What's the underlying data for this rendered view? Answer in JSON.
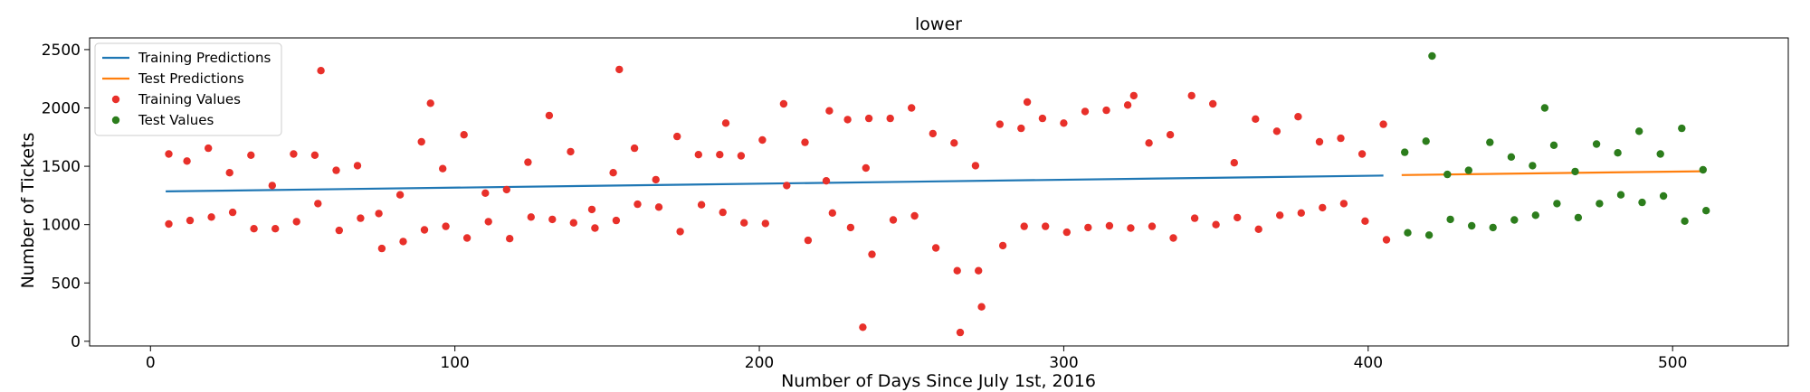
{
  "chart_data": {
    "type": "scatter",
    "title": "lower",
    "xlabel": "Number of Days Since July 1st, 2016",
    "ylabel": "Number of Tickets",
    "xlim": [
      -20,
      538
    ],
    "ylim": [
      -40,
      2600
    ],
    "xticks": [
      0,
      100,
      200,
      300,
      400,
      500
    ],
    "yticks": [
      0,
      500,
      1000,
      1500,
      2000,
      2500
    ],
    "grid": false,
    "legend_position": "upper-left",
    "series": [
      {
        "name": "Training Predictions",
        "type": "line",
        "color": "#1f77b4",
        "points": [
          [
            5,
            1285
          ],
          [
            405,
            1420
          ]
        ]
      },
      {
        "name": "Test Predictions",
        "type": "line",
        "color": "#ff7f0e",
        "points": [
          [
            411,
            1425
          ],
          [
            510,
            1457
          ]
        ]
      },
      {
        "name": "Training Values",
        "type": "scatter",
        "color": "#e8302a",
        "points": [
          [
            6,
            1605
          ],
          [
            6,
            1005
          ],
          [
            12,
            1545
          ],
          [
            13,
            1035
          ],
          [
            19,
            1655
          ],
          [
            20,
            1065
          ],
          [
            26,
            1445
          ],
          [
            27,
            1105
          ],
          [
            33,
            1595
          ],
          [
            34,
            965
          ],
          [
            40,
            1335
          ],
          [
            41,
            965
          ],
          [
            47,
            1605
          ],
          [
            48,
            1025
          ],
          [
            54,
            1595
          ],
          [
            55,
            1180
          ],
          [
            56,
            2320
          ],
          [
            61,
            1465
          ],
          [
            62,
            950
          ],
          [
            68,
            1505
          ],
          [
            69,
            1055
          ],
          [
            75,
            1095
          ],
          [
            76,
            795
          ],
          [
            82,
            1255
          ],
          [
            83,
            855
          ],
          [
            89,
            1710
          ],
          [
            90,
            955
          ],
          [
            92,
            2040
          ],
          [
            96,
            1480
          ],
          [
            97,
            985
          ],
          [
            103,
            1770
          ],
          [
            104,
            885
          ],
          [
            110,
            1270
          ],
          [
            111,
            1025
          ],
          [
            117,
            1300
          ],
          [
            118,
            880
          ],
          [
            124,
            1535
          ],
          [
            125,
            1065
          ],
          [
            131,
            1935
          ],
          [
            132,
            1045
          ],
          [
            138,
            1625
          ],
          [
            139,
            1015
          ],
          [
            145,
            1130
          ],
          [
            146,
            970
          ],
          [
            152,
            1445
          ],
          [
            153,
            1035
          ],
          [
            154,
            2330
          ],
          [
            159,
            1655
          ],
          [
            160,
            1175
          ],
          [
            166,
            1385
          ],
          [
            167,
            1150
          ],
          [
            173,
            1755
          ],
          [
            174,
            940
          ],
          [
            180,
            1600
          ],
          [
            181,
            1170
          ],
          [
            187,
            1600
          ],
          [
            188,
            1105
          ],
          [
            189,
            1870
          ],
          [
            194,
            1590
          ],
          [
            195,
            1015
          ],
          [
            201,
            1725
          ],
          [
            202,
            1010
          ],
          [
            208,
            2035
          ],
          [
            209,
            1335
          ],
          [
            215,
            1705
          ],
          [
            216,
            865
          ],
          [
            222,
            1375
          ],
          [
            223,
            1975
          ],
          [
            224,
            1100
          ],
          [
            229,
            1900
          ],
          [
            230,
            975
          ],
          [
            234,
            120
          ],
          [
            235,
            1485
          ],
          [
            236,
            1910
          ],
          [
            237,
            745
          ],
          [
            243,
            1910
          ],
          [
            244,
            1040
          ],
          [
            250,
            2000
          ],
          [
            251,
            1075
          ],
          [
            257,
            1780
          ],
          [
            258,
            800
          ],
          [
            264,
            1700
          ],
          [
            265,
            605
          ],
          [
            266,
            75
          ],
          [
            271,
            1505
          ],
          [
            272,
            605
          ],
          [
            273,
            295
          ],
          [
            279,
            1860
          ],
          [
            280,
            820
          ],
          [
            286,
            1825
          ],
          [
            287,
            985
          ],
          [
            288,
            2050
          ],
          [
            293,
            1910
          ],
          [
            294,
            985
          ],
          [
            300,
            1870
          ],
          [
            301,
            935
          ],
          [
            307,
            1970
          ],
          [
            308,
            975
          ],
          [
            314,
            1980
          ],
          [
            315,
            990
          ],
          [
            321,
            2025
          ],
          [
            322,
            970
          ],
          [
            323,
            2105
          ],
          [
            328,
            1700
          ],
          [
            329,
            985
          ],
          [
            335,
            1770
          ],
          [
            336,
            885
          ],
          [
            342,
            2105
          ],
          [
            343,
            1055
          ],
          [
            349,
            2035
          ],
          [
            350,
            1000
          ],
          [
            356,
            1530
          ],
          [
            357,
            1060
          ],
          [
            363,
            1905
          ],
          [
            364,
            960
          ],
          [
            370,
            1800
          ],
          [
            371,
            1080
          ],
          [
            377,
            1925
          ],
          [
            378,
            1100
          ],
          [
            384,
            1710
          ],
          [
            385,
            1145
          ],
          [
            391,
            1740
          ],
          [
            392,
            1180
          ],
          [
            398,
            1605
          ],
          [
            399,
            1030
          ],
          [
            405,
            1860
          ],
          [
            406,
            870
          ]
        ]
      },
      {
        "name": "Test Values",
        "type": "scatter",
        "color": "#2c7d1c",
        "points": [
          [
            412,
            1620
          ],
          [
            413,
            930
          ],
          [
            419,
            1715
          ],
          [
            420,
            910
          ],
          [
            421,
            2445
          ],
          [
            426,
            1430
          ],
          [
            427,
            1045
          ],
          [
            433,
            1465
          ],
          [
            434,
            990
          ],
          [
            440,
            1705
          ],
          [
            441,
            975
          ],
          [
            447,
            1580
          ],
          [
            448,
            1040
          ],
          [
            454,
            1505
          ],
          [
            455,
            1080
          ],
          [
            458,
            2000
          ],
          [
            461,
            1680
          ],
          [
            462,
            1180
          ],
          [
            468,
            1455
          ],
          [
            469,
            1060
          ],
          [
            475,
            1690
          ],
          [
            476,
            1180
          ],
          [
            482,
            1615
          ],
          [
            483,
            1255
          ],
          [
            489,
            1800
          ],
          [
            490,
            1190
          ],
          [
            496,
            1605
          ],
          [
            497,
            1245
          ],
          [
            503,
            1825
          ],
          [
            504,
            1030
          ],
          [
            510,
            1470
          ],
          [
            511,
            1120
          ]
        ]
      }
    ]
  }
}
